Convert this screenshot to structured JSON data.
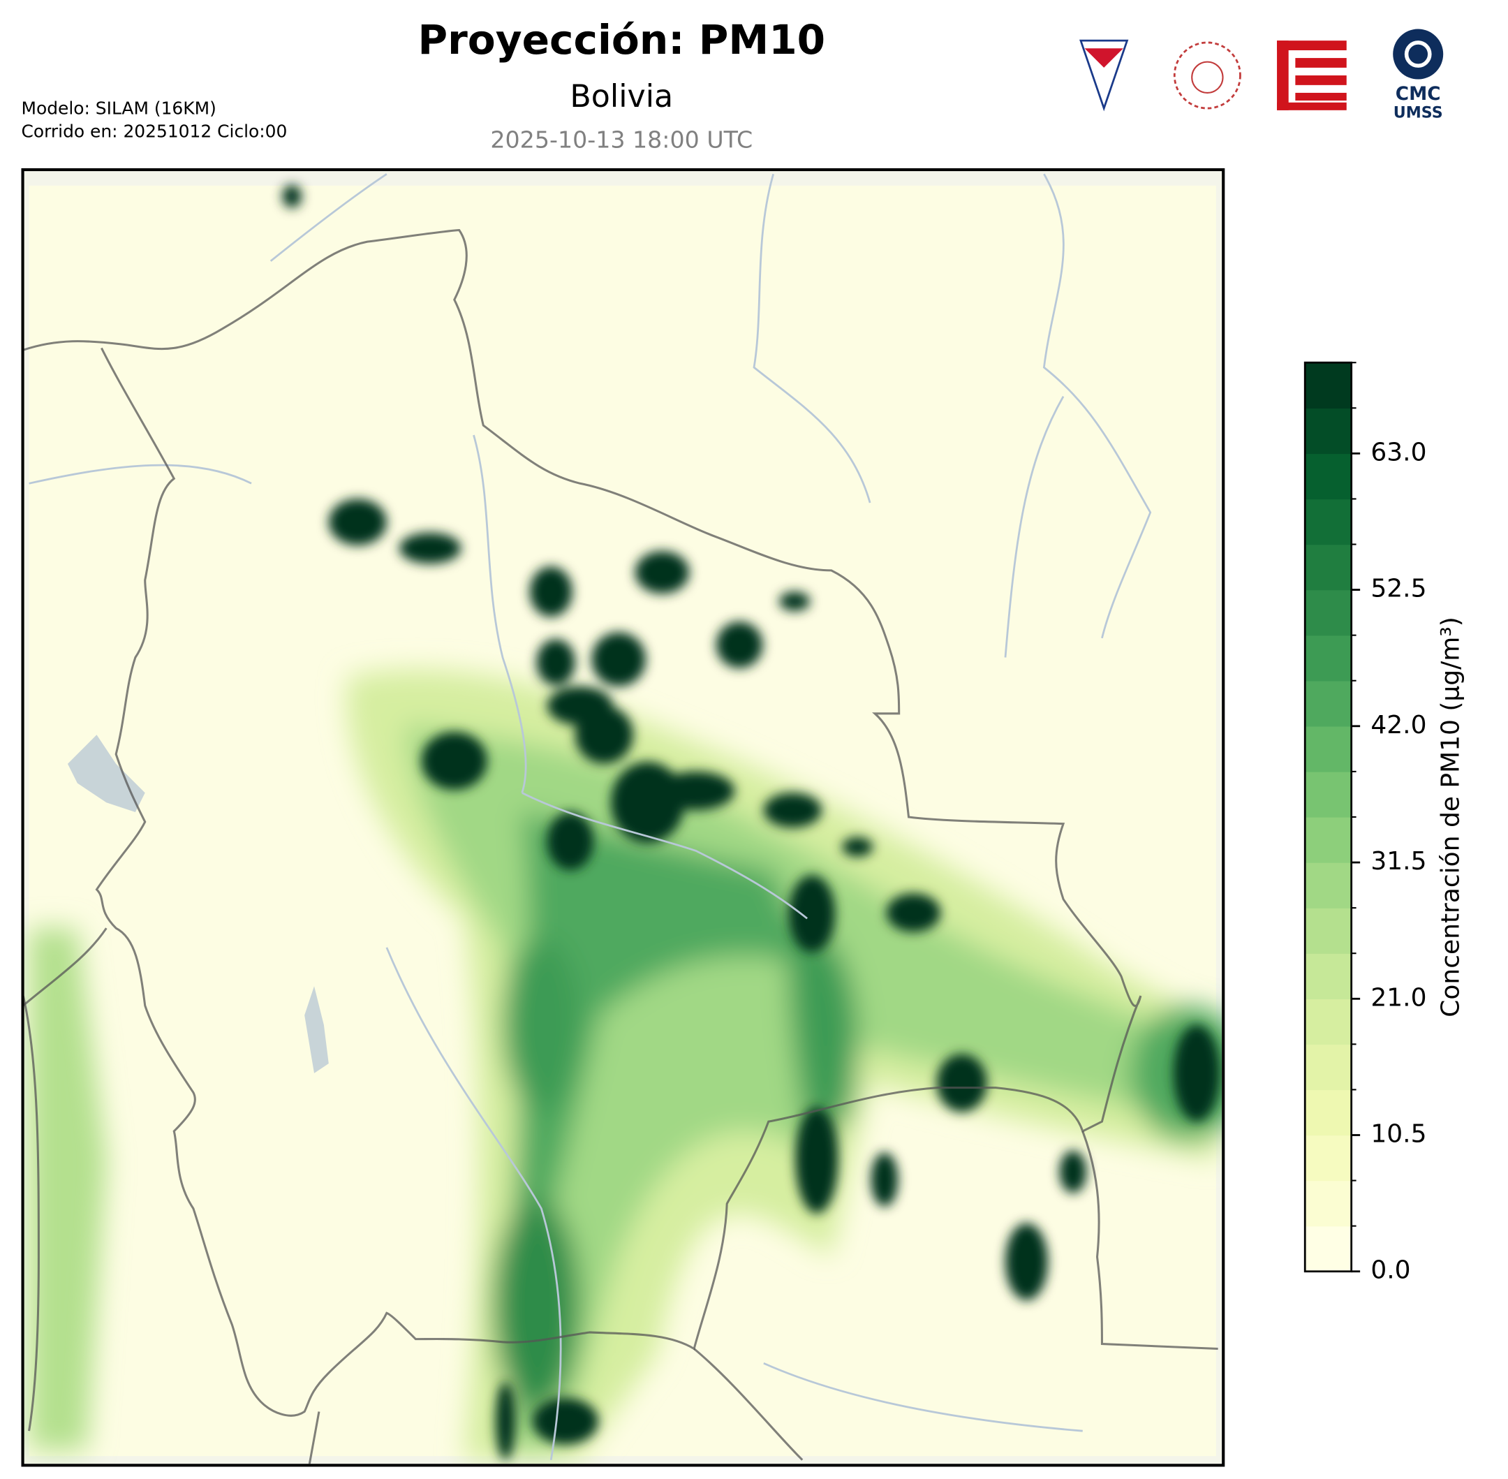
{
  "header": {
    "title": "Proyección: PM10",
    "subtitle": "Bolivia",
    "timestamp": "2025-10-13 18:00 UTC",
    "model": "Modelo: SILAM (16KM)",
    "run": "Corrido en: 20251012 Ciclo:00"
  },
  "logos": {
    "cmc": "CMC",
    "umss": "UMSS"
  },
  "map": {
    "colorbar": {
      "label": "Concentración de PM10 (µg/m³)",
      "levels": [
        0,
        3.5,
        7,
        10.5,
        14,
        17.5,
        21,
        24.5,
        28,
        31.5,
        35,
        38.5,
        42,
        45.5,
        49,
        52.5,
        56,
        59.5,
        63,
        66.5,
        70
      ],
      "colors": [
        "#ffffe5",
        "#fbfdd2",
        "#f6fbc0",
        "#eef8b1",
        "#e3f3a8",
        "#d6eea0",
        "#c6e898",
        "#b4e08e",
        "#a1d885",
        "#8dcf7b",
        "#78c471",
        "#63b767",
        "#4fa95e",
        "#3d9b54",
        "#2e8c4a",
        "#207e40",
        "#126f37",
        "#06602f",
        "#034d27",
        "#003a1f"
      ],
      "lim": [
        0,
        70
      ],
      "ticks": [
        {
          "value": 0,
          "label": "0.0"
        },
        10.5,
        {
          "value": 21,
          "label": "21.0"
        },
        31.5,
        {
          "value": 42,
          "label": "42.0"
        },
        52.5,
        {
          "value": 63,
          "label": "63.0"
        }
      ]
    }
  }
}
